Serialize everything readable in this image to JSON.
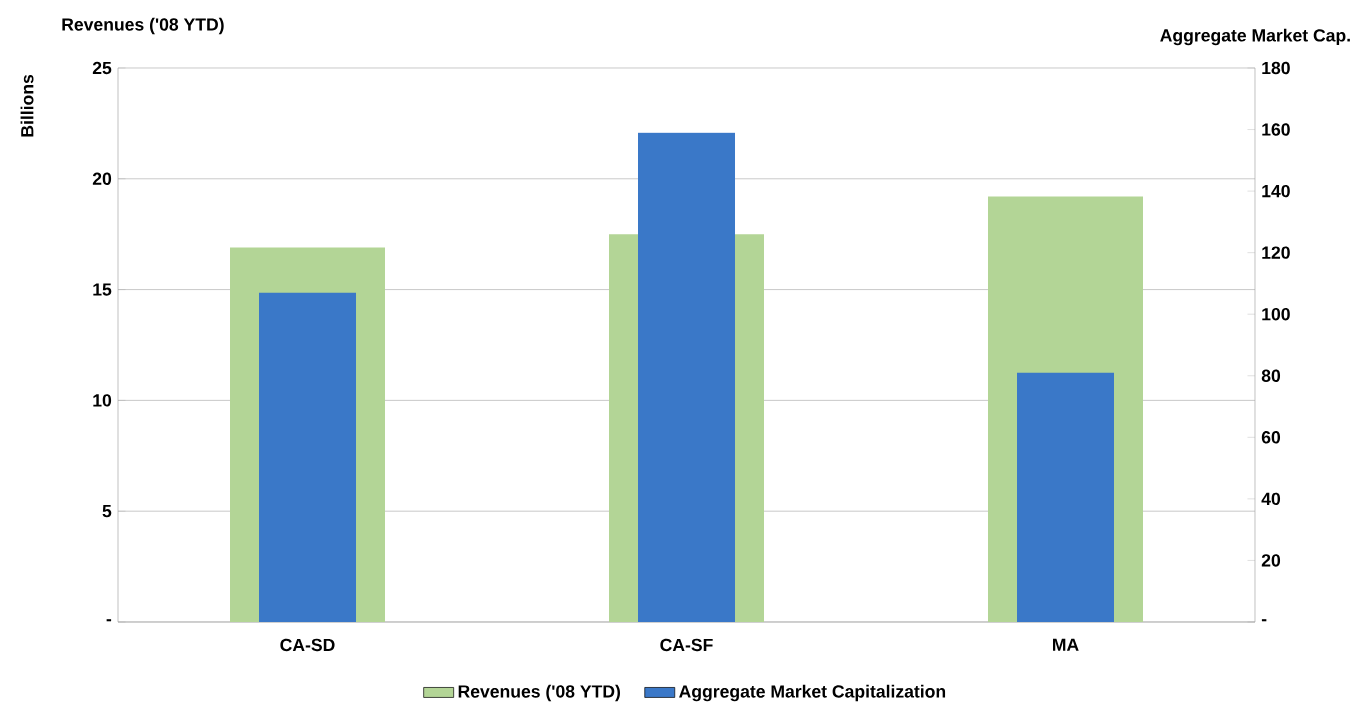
{
  "chart_data": {
    "type": "bar",
    "categories": [
      "CA-SD",
      "CA-SF",
      "MA"
    ],
    "series": [
      {
        "name": "Revenues ('08 YTD)",
        "color": "#b3d596",
        "values": [
          16.9,
          17.5,
          19.2
        ]
      },
      {
        "name": "Aggregate Market Capitalization",
        "color": "#3a78c8",
        "values": [
          107,
          159,
          81
        ],
        "axis": "y2"
      }
    ],
    "ylabel": "Billions",
    "y2label": "Aggregate Market Cap.",
    "annotations": [
      "Revenues ('08 YTD)"
    ],
    "ylim": [
      0,
      25
    ],
    "yticks": [
      {
        "value": 0,
        "label": "-"
      },
      5,
      10,
      15,
      20,
      25
    ],
    "y2lim": [
      0,
      180
    ],
    "y2ticks": [
      {
        "value": 0,
        "label": "-"
      },
      20,
      40,
      60,
      80,
      100,
      120,
      140,
      160,
      180
    ],
    "grid": "y",
    "legend": "bottom"
  }
}
